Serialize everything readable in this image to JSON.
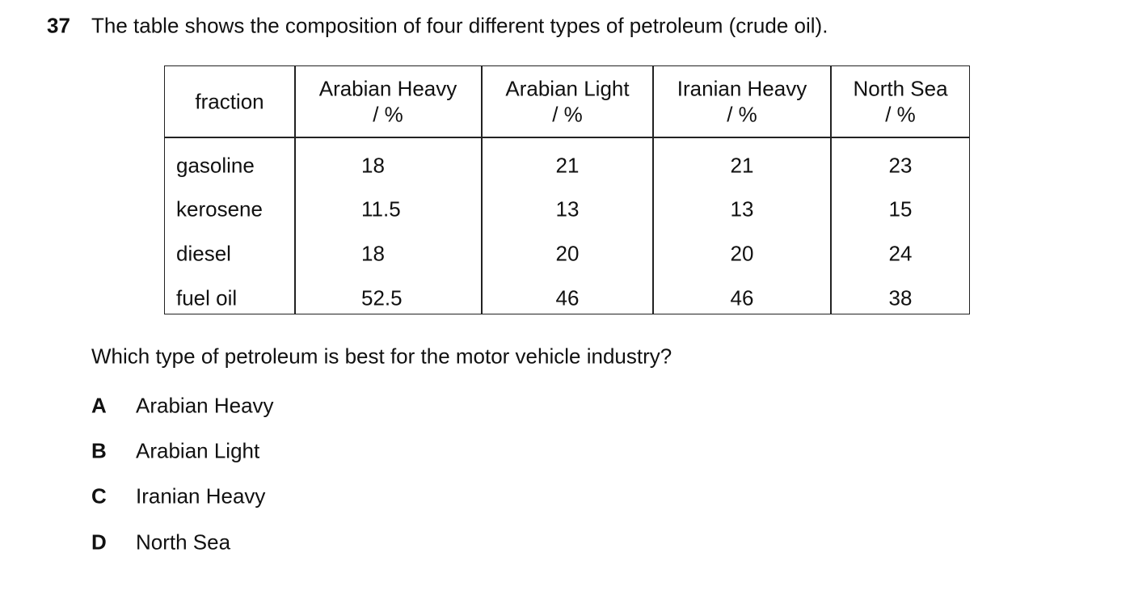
{
  "question": {
    "number": "37",
    "text": "The table shows the composition of four different types of petroleum (crude oil).",
    "prompt": "Which type of petroleum is best for the motor vehicle industry?"
  },
  "table": {
    "corner": "fraction",
    "columns": [
      {
        "name": "Arabian Heavy",
        "unit": "/ %"
      },
      {
        "name": "Arabian Light",
        "unit": "/ %"
      },
      {
        "name": "Iranian Heavy",
        "unit": "/ %"
      },
      {
        "name": "North Sea",
        "unit": "/ %"
      }
    ],
    "rows": [
      {
        "fraction": "gasoline",
        "values": [
          18,
          21,
          21,
          23
        ]
      },
      {
        "fraction": "kerosene",
        "values": [
          11.5,
          13,
          13,
          15
        ]
      },
      {
        "fraction": "diesel",
        "values": [
          18,
          20,
          20,
          24
        ]
      },
      {
        "fraction": "fuel oil",
        "values": [
          52.5,
          46,
          46,
          38
        ]
      }
    ]
  },
  "options": [
    {
      "letter": "A",
      "text": "Arabian Heavy"
    },
    {
      "letter": "B",
      "text": "Arabian Light"
    },
    {
      "letter": "C",
      "text": "Iranian Heavy"
    },
    {
      "letter": "D",
      "text": "North Sea"
    }
  ]
}
